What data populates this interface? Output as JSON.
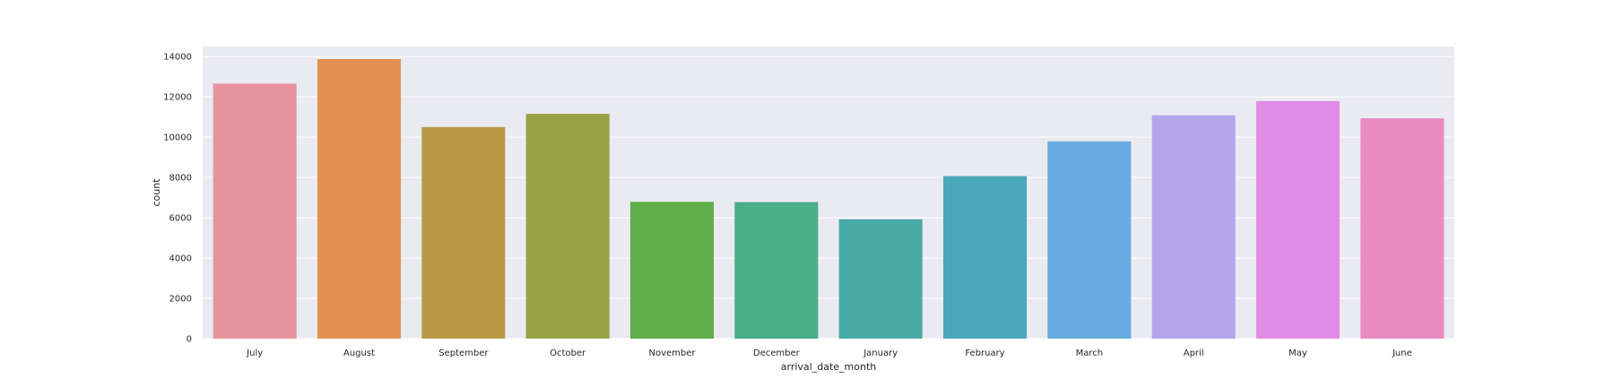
{
  "chart_data": {
    "type": "bar",
    "title": "",
    "xlabel": "arrival_date_month",
    "ylabel": "count",
    "ylim": [
      0,
      14500
    ],
    "yticks": [
      0,
      2000,
      4000,
      6000,
      8000,
      10000,
      12000,
      14000
    ],
    "grid": true,
    "categories": [
      "July",
      "August",
      "September",
      "October",
      "November",
      "December",
      "January",
      "February",
      "March",
      "April",
      "May",
      "June"
    ],
    "values": [
      12661,
      13877,
      10508,
      11160,
      6794,
      6780,
      5929,
      8068,
      9794,
      11089,
      11791,
      10939
    ],
    "colors": [
      "#e8949f",
      "#e0914f",
      "#b89a46",
      "#98a246",
      "#5fad4b",
      "#4aae8a",
      "#4aaaa6",
      "#4aa8ba",
      "#68abe0",
      "#b3a6ea",
      "#e08be6",
      "#e88cc2"
    ]
  }
}
